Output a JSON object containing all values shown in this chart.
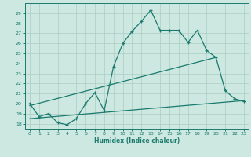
{
  "xlabel": "Humidex (Indice chaleur)",
  "bg_color": "#cce8e0",
  "line_color": "#1a7a6e",
  "grid_color": "#aaccc4",
  "xlim": [
    -0.5,
    23.5
  ],
  "ylim": [
    17.5,
    30
  ],
  "yticks": [
    18,
    19,
    20,
    21,
    22,
    23,
    24,
    25,
    26,
    27,
    28,
    29
  ],
  "xticks": [
    0,
    1,
    2,
    3,
    4,
    5,
    6,
    7,
    8,
    9,
    10,
    11,
    12,
    13,
    14,
    15,
    16,
    17,
    18,
    19,
    20,
    21,
    22,
    23
  ],
  "line1_x": [
    0,
    1,
    2,
    3,
    4,
    5,
    6,
    7,
    8,
    9,
    10,
    11,
    12,
    13,
    14,
    15,
    16,
    17,
    18,
    19,
    20,
    21,
    22,
    23
  ],
  "line1_y": [
    20.0,
    18.7,
    19.0,
    18.1,
    17.9,
    18.5,
    20.0,
    21.1,
    19.3,
    23.7,
    26.0,
    27.2,
    28.2,
    29.3,
    27.3,
    27.3,
    27.3,
    26.1,
    27.3,
    25.3,
    24.6,
    21.3,
    20.5,
    20.2
  ],
  "line2_x": [
    0,
    20
  ],
  "line2_y": [
    19.8,
    24.6
  ],
  "line3_x": [
    0,
    23
  ],
  "line3_y": [
    18.5,
    20.3
  ]
}
